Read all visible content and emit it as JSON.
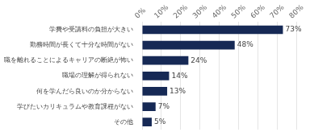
{
  "chart_data": {
    "type": "bar",
    "orientation": "horizontal",
    "categories": [
      "その他",
      "学びたいカリキュラムや教育課程がない",
      "何を学んだら良いのか分からない",
      "職場の理解が得られない",
      "職を離れることによるキャリアの断絶が怖い",
      "勤務時間が長くて十分な時間がない",
      "学費や受講料の負担が大きい"
    ],
    "values": [
      5,
      7,
      13,
      14,
      24,
      48,
      73
    ],
    "value_labels": [
      "5%",
      "7%",
      "13%",
      "14%",
      "24%",
      "48%",
      "73%"
    ],
    "data_labels": true,
    "color": "#162955",
    "xlim": [
      0,
      80
    ],
    "xticks": [
      {
        "value": 0,
        "label": "0%"
      },
      {
        "value": 10,
        "label": "10%"
      },
      {
        "value": 20,
        "label": "20%"
      },
      {
        "value": 30,
        "label": "30%"
      },
      {
        "value": 40,
        "label": "40%"
      },
      {
        "value": 50,
        "label": "50%"
      },
      {
        "value": 60,
        "label": "60%"
      },
      {
        "value": 70,
        "label": "70%"
      },
      {
        "value": 80,
        "label": "80%"
      }
    ],
    "grid": true
  }
}
